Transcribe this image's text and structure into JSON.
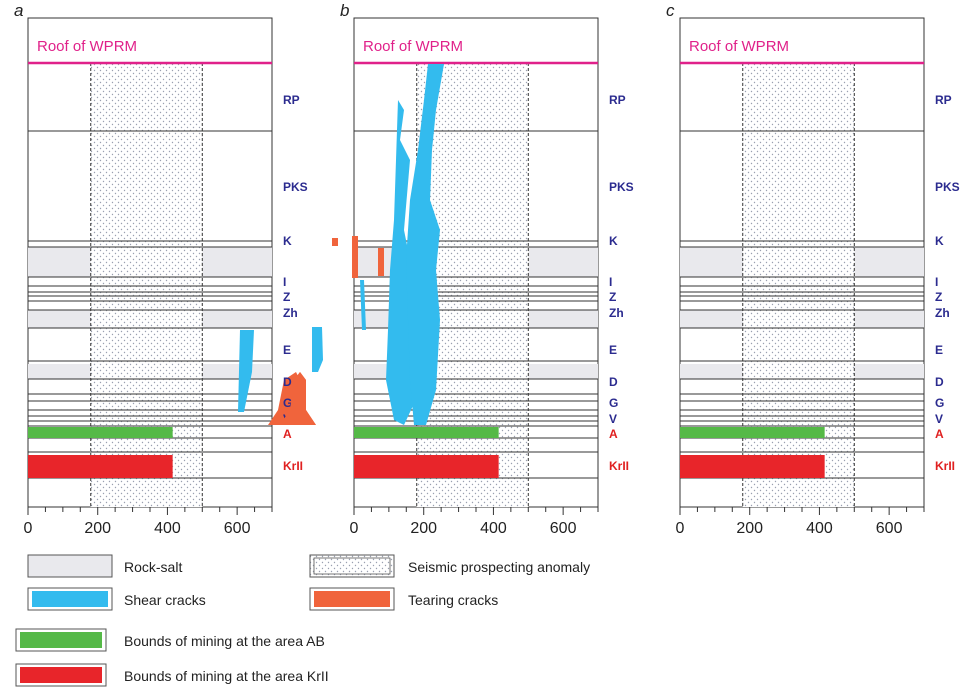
{
  "figure": {
    "panels": [
      {
        "letter": "a",
        "roof_label": "Roof of WPRM"
      },
      {
        "letter": "b",
        "roof_label": "Roof of WPRM"
      },
      {
        "letter": "c",
        "roof_label": "Roof of WPRM"
      }
    ],
    "layer_labels": [
      {
        "text": "RP",
        "type": "layer"
      },
      {
        "text": "PKS",
        "type": "layer"
      },
      {
        "text": "K",
        "type": "layer"
      },
      {
        "text": "I",
        "type": "layer"
      },
      {
        "text": "Z",
        "type": "layer"
      },
      {
        "text": "Zh",
        "type": "layer"
      },
      {
        "text": "E",
        "type": "layer"
      },
      {
        "text": "D",
        "type": "layer"
      },
      {
        "text": "G",
        "type": "layer"
      },
      {
        "text": "V",
        "type": "layer"
      },
      {
        "text": "A",
        "type": "mining"
      },
      {
        "text": "KrII",
        "type": "mining"
      }
    ],
    "x_ticks": [
      "0",
      "200",
      "400",
      "600"
    ],
    "x_range": [
      0,
      700
    ],
    "anomaly_x_range": [
      180,
      500
    ],
    "mining_bounds_x": {
      "AB": [
        0,
        415
      ],
      "KrII": [
        0,
        415
      ]
    },
    "colors": {
      "roof_line": "#e0218a",
      "layer_label": "#2b2b8f",
      "mining_label": "#e02020",
      "rock_salt": "#e9e9ed",
      "shear_cracks": "#33bbee",
      "tearing_cracks": "#f0643c",
      "mining_AB": "#55b947",
      "mining_KrII": "#e8252a"
    }
  },
  "legend": [
    {
      "key": "rock_salt",
      "label": "Rock-salt"
    },
    {
      "key": "anomaly",
      "label": "Seismic prospecting anomaly"
    },
    {
      "key": "shear_cracks",
      "label": "Shear cracks"
    },
    {
      "key": "tearing_cracks",
      "label": "Tearing cracks"
    },
    {
      "key": "mining_AB",
      "label": "Bounds of mining at the area AB"
    },
    {
      "key": "mining_KrII",
      "label": "Bounds of mining at the area KrII"
    }
  ]
}
